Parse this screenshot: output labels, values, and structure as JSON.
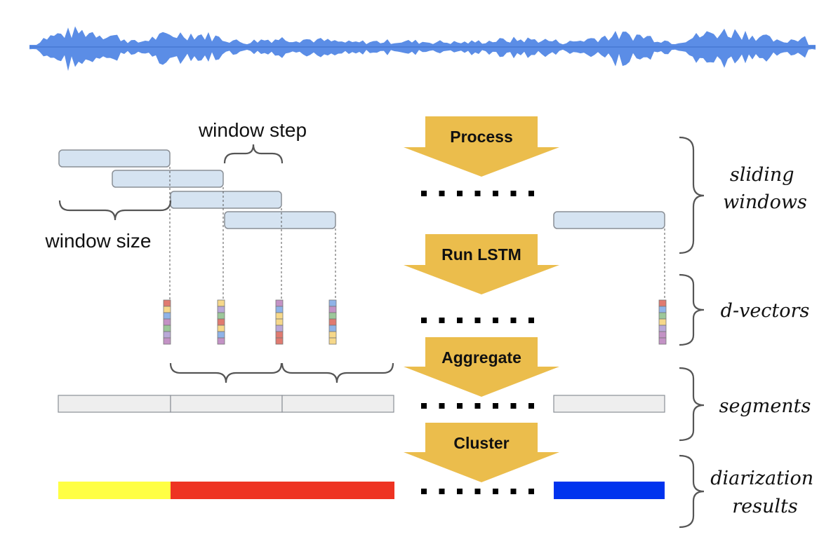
{
  "annotations": {
    "window_step": "window step",
    "window_size": "window size"
  },
  "steps": [
    {
      "label": "Process"
    },
    {
      "label": "Run LSTM"
    },
    {
      "label": "Aggregate"
    },
    {
      "label": "Cluster"
    }
  ],
  "stages": [
    {
      "lines": [
        "sliding",
        "windows"
      ]
    },
    {
      "lines": [
        "d-vectors"
      ]
    },
    {
      "lines": [
        "segments"
      ]
    },
    {
      "lines": [
        "diarization",
        "results"
      ]
    }
  ],
  "colors": {
    "waveform": "#5b8de6",
    "window_fill": "#d5e3f1",
    "window_stroke": "#8a8f96",
    "segment_fill": "#eeeeee",
    "arrow": "#ebbd4c",
    "brace": "#555555",
    "speaker_1": "#ffff44",
    "speaker_2": "#ee3322",
    "speaker_3": "#0033ee",
    "dvector_cells": [
      "#e07a70",
      "#f6d88a",
      "#8fb3e8",
      "#c392c5",
      "#9cc79a",
      "#b9a8d8"
    ]
  },
  "diarization": [
    "speaker_1",
    "speaker_2",
    "speaker_3"
  ]
}
